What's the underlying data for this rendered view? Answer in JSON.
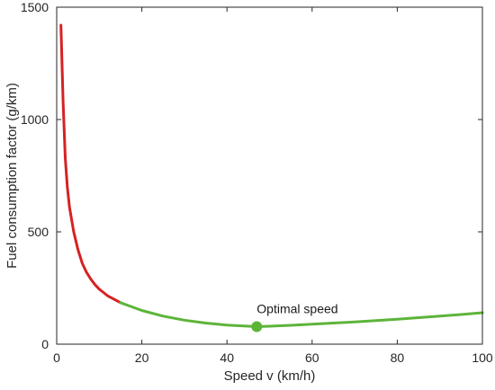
{
  "chart_data": {
    "type": "line",
    "title": "",
    "xlabel": "Speed v (km/h)",
    "ylabel": "Fuel consumption factor (g/km)",
    "xlim": [
      0,
      100
    ],
    "ylim": [
      0,
      1500
    ],
    "xticks": [
      0,
      20,
      40,
      60,
      80,
      100
    ],
    "yticks": [
      0,
      500,
      1000,
      1500
    ],
    "grid": false,
    "series": [
      {
        "color": "#d62222",
        "x": [
          1,
          1.5,
          2,
          2.5,
          3,
          4,
          5,
          6,
          7,
          8,
          9,
          10,
          11,
          12,
          13,
          14,
          15
        ],
        "y": [
          1420,
          1080,
          830,
          700,
          610,
          500,
          420,
          360,
          320,
          290,
          265,
          245,
          230,
          215,
          205,
          195,
          185
        ]
      },
      {
        "color": "#5db43a",
        "x": [
          15,
          20,
          25,
          30,
          35,
          40,
          45,
          47,
          50,
          55,
          60,
          65,
          70,
          75,
          80,
          85,
          90,
          95,
          100
        ],
        "y": [
          185,
          150,
          125,
          107,
          94,
          85,
          80,
          78,
          80,
          84,
          89,
          94,
          99,
          105,
          111,
          118,
          125,
          132,
          140
        ]
      }
    ],
    "annotations": [
      {
        "text": "Optimal speed",
        "x": 47,
        "y": 78,
        "color": "#5db43a"
      }
    ]
  }
}
